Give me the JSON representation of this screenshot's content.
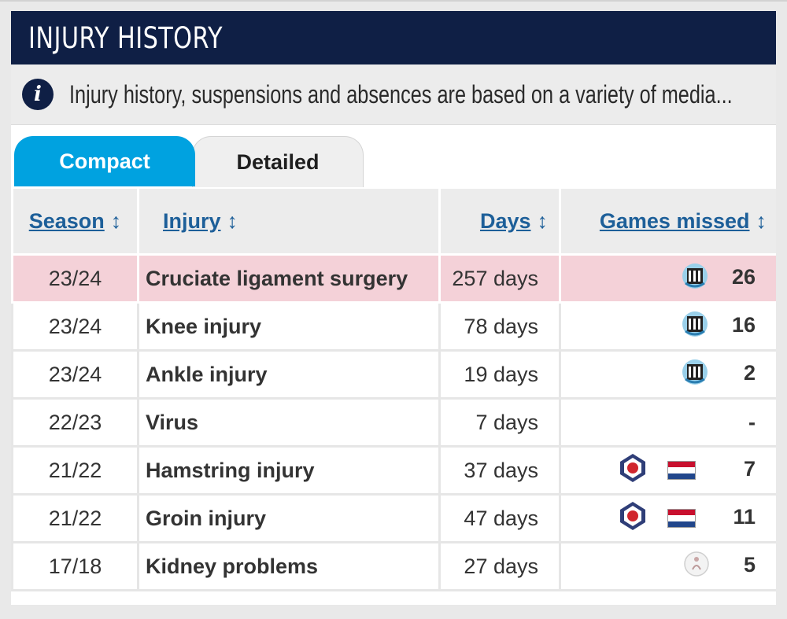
{
  "header": {
    "title": "INJURY HISTORY"
  },
  "info": {
    "text": "Injury history, suspensions and absences are based on a variety of media..."
  },
  "tabs": [
    {
      "label": "Compact",
      "active": true
    },
    {
      "label": "Detailed",
      "active": false
    }
  ],
  "table": {
    "columns": [
      {
        "label": "Season",
        "sort_icon": "↕"
      },
      {
        "label": "Injury",
        "sort_icon": "↕"
      },
      {
        "label": "Days",
        "sort_icon": "↕"
      },
      {
        "label": "Games missed",
        "sort_icon": "↕"
      }
    ],
    "rows": [
      {
        "season": "23/24",
        "injury": "Cruciate ligament surgery",
        "days": "257 days",
        "games": "26",
        "club_icon": "newcastle-crest-icon"
      },
      {
        "season": "23/24",
        "injury": "Knee injury",
        "days": "78 days",
        "games": "16",
        "club_icon": "newcastle-crest-icon"
      },
      {
        "season": "23/24",
        "injury": "Ankle injury",
        "days": "19 days",
        "games": "2",
        "club_icon": "newcastle-crest-icon"
      },
      {
        "season": "22/23",
        "injury": "Virus",
        "days": "7 days",
        "games": "-"
      },
      {
        "season": "21/22",
        "injury": "Hamstring injury",
        "days": "37 days",
        "games": "7",
        "club_icon": "lille-crest-icon",
        "flag_icon": "netherlands-flag-icon"
      },
      {
        "season": "21/22",
        "injury": "Groin injury",
        "days": "47 days",
        "games": "11",
        "club_icon": "lille-crest-icon",
        "flag_icon": "netherlands-flag-icon"
      },
      {
        "season": "17/18",
        "injury": "Kidney problems",
        "days": "27 days",
        "games": "5",
        "club_icon": "ajax-crest-icon"
      }
    ]
  },
  "colors": {
    "title_bar": "#0f1f45",
    "active_tab": "#00a2e0",
    "link": "#1d5f99",
    "highlight_row": "#f4d1d8"
  }
}
